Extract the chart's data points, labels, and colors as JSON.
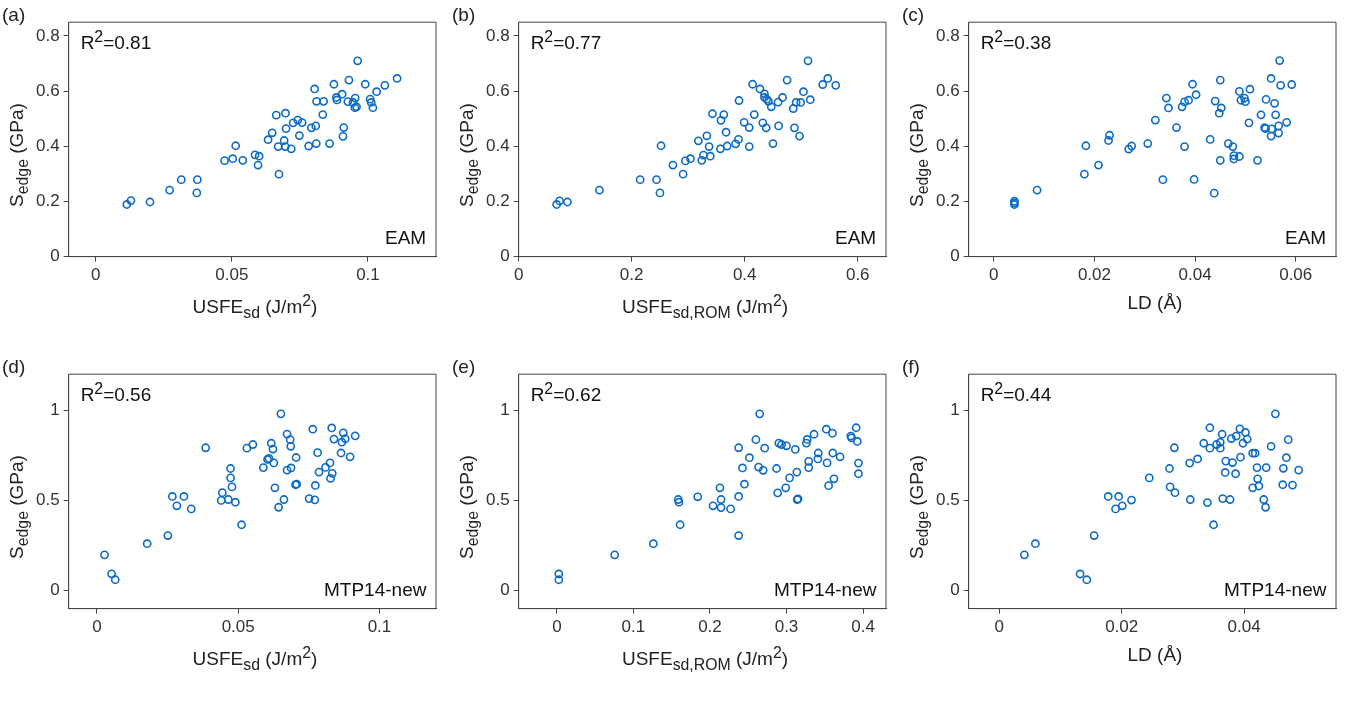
{
  "chart_data": [
    {
      "type": "scatter",
      "title": "(a)",
      "xlabel": "USFE$_{sd}$ (J/m$^{2}$)",
      "ylabel": "S$_{edge}$ (GPa)",
      "annotations": [
        "R$^{2}$=0.81",
        "EAM"
      ],
      "color": "#0b6bc4",
      "marker": "circle",
      "xlim": [
        -0.01,
        0.125
      ],
      "xticks": [
        0,
        0.05,
        0.1
      ],
      "ylim": [
        0,
        0.85
      ],
      "yticks": [
        0,
        0.2,
        0.4,
        0.6,
        0.8
      ],
      "x": [
        0.0114,
        0.0129,
        0.0199,
        0.0271,
        0.0314,
        0.0373,
        0.0371,
        0.0473,
        0.0503,
        0.0514,
        0.054,
        0.0585,
        0.06,
        0.0596,
        0.0633,
        0.0648,
        0.0673,
        0.0663,
        0.0697,
        0.067,
        0.0692,
        0.0696,
        0.0718,
        0.0699,
        0.0725,
        0.0742,
        0.0758,
        0.0748,
        0.0782,
        0.0792,
        0.0808,
        0.081,
        0.0804,
        0.0811,
        0.0837,
        0.0834,
        0.0859,
        0.0875,
        0.0884,
        0.0886,
        0.0905,
        0.0911,
        0.0908,
        0.0926,
        0.093,
        0.0945,
        0.0953,
        0.0952,
        0.0958,
        0.0962,
        0.099,
        0.1008,
        0.1012,
        0.1018,
        0.1032,
        0.1062,
        0.1107
      ],
      "values": [
        0.189,
        0.203,
        0.198,
        0.241,
        0.279,
        0.279,
        0.231,
        0.348,
        0.355,
        0.402,
        0.349,
        0.369,
        0.364,
        0.332,
        0.424,
        0.449,
        0.299,
        0.513,
        0.52,
        0.399,
        0.421,
        0.399,
        0.391,
        0.464,
        0.485,
        0.495,
        0.486,
        0.439,
        0.401,
        0.467,
        0.474,
        0.41,
        0.608,
        0.563,
        0.563,
        0.515,
        0.41,
        0.625,
        0.577,
        0.568,
        0.589,
        0.468,
        0.436,
        0.562,
        0.64,
        0.559,
        0.575,
        0.54,
        0.543,
        0.71,
        0.625,
        0.571,
        0.559,
        0.54,
        0.598,
        0.621,
        0.646
      ]
    },
    {
      "type": "scatter",
      "title": "(b)",
      "xlabel": "USFE$_{sd,ROM}$ (J/m$^{2}$)",
      "ylabel": "S$_{edge}$ (GPa)",
      "annotations": [
        "R$^{2}$=0.77",
        "EAM"
      ],
      "color": "#0b6bc4",
      "marker": "circle",
      "xlim": [
        0,
        0.65
      ],
      "xticks": [
        0,
        0.2,
        0.4,
        0.6
      ],
      "ylim": [
        0,
        0.85
      ],
      "yticks": [
        0,
        0.2,
        0.4,
        0.6,
        0.8
      ],
      "x": [
        0.0673,
        0.0725,
        0.0863,
        0.143,
        0.215,
        0.244,
        0.25,
        0.252,
        0.273,
        0.291,
        0.295,
        0.304,
        0.318,
        0.324,
        0.327,
        0.333,
        0.337,
        0.339,
        0.343,
        0.357,
        0.358,
        0.363,
        0.367,
        0.369,
        0.384,
        0.389,
        0.39,
        0.399,
        0.408,
        0.408,
        0.414,
        0.417,
        0.427,
        0.432,
        0.435,
        0.435,
        0.438,
        0.439,
        0.442,
        0.447,
        0.45,
        0.46,
        0.459,
        0.467,
        0.475,
        0.486,
        0.488,
        0.491,
        0.499,
        0.497,
        0.504,
        0.516,
        0.512,
        0.538,
        0.547,
        0.561
      ],
      "values": [
        0.189,
        0.202,
        0.198,
        0.241,
        0.279,
        0.279,
        0.231,
        0.402,
        0.332,
        0.299,
        0.347,
        0.355,
        0.42,
        0.349,
        0.368,
        0.438,
        0.399,
        0.364,
        0.518,
        0.391,
        0.494,
        0.515,
        0.451,
        0.401,
        0.409,
        0.425,
        0.566,
        0.487,
        0.468,
        0.399,
        0.625,
        0.515,
        0.608,
        0.485,
        0.59,
        0.577,
        0.467,
        0.571,
        0.563,
        0.543,
        0.41,
        0.474,
        0.56,
        0.577,
        0.64,
        0.537,
        0.467,
        0.559,
        0.559,
        0.437,
        0.598,
        0.569,
        0.71,
        0.624,
        0.646,
        0.621
      ]
    },
    {
      "type": "scatter",
      "title": "(c)",
      "xlabel": "LD (Å)",
      "ylabel": "S$_{edge}$ (GPa)",
      "annotations": [
        "R$^{2}$=0.38",
        "EAM"
      ],
      "color": "#0b6bc4",
      "marker": "circle",
      "xlim": [
        -0.005,
        0.068
      ],
      "xticks": [
        0,
        0.02,
        0.04,
        0.06
      ],
      "ylim": [
        0,
        0.85
      ],
      "yticks": [
        0,
        0.2,
        0.4,
        0.6,
        0.8
      ],
      "x": [
        0.0041,
        0.0041,
        0.0041,
        0.0086,
        0.018,
        0.0183,
        0.0208,
        0.0228,
        0.023,
        0.0268,
        0.0274,
        0.0306,
        0.0321,
        0.0336,
        0.0343,
        0.0347,
        0.0363,
        0.0374,
        0.0379,
        0.0379,
        0.0387,
        0.0395,
        0.0398,
        0.0402,
        0.043,
        0.0438,
        0.044,
        0.0448,
        0.045,
        0.045,
        0.0452,
        0.0466,
        0.0475,
        0.0477,
        0.0477,
        0.0488,
        0.0488,
        0.0491,
        0.05,
        0.0498,
        0.0507,
        0.0509,
        0.0524,
        0.0531,
        0.0538,
        0.054,
        0.0541,
        0.0551,
        0.0551,
        0.0552,
        0.0558,
        0.056,
        0.0566,
        0.0566,
        0.057,
        0.0568,
        0.0582,
        0.0592
      ],
      "values": [
        0.201,
        0.189,
        0.195,
        0.241,
        0.299,
        0.402,
        0.332,
        0.421,
        0.44,
        0.39,
        0.401,
        0.41,
        0.495,
        0.279,
        0.575,
        0.539,
        0.468,
        0.543,
        0.561,
        0.399,
        0.567,
        0.625,
        0.28,
        0.587,
        0.425,
        0.23,
        0.564,
        0.52,
        0.64,
        0.349,
        0.539,
        0.41,
        0.399,
        0.366,
        0.354,
        0.599,
        0.363,
        0.567,
        0.562,
        0.575,
        0.485,
        0.607,
        0.349,
        0.514,
        0.468,
        0.464,
        0.57,
        0.646,
        0.437,
        0.463,
        0.556,
        0.514,
        0.448,
        0.474,
        0.621,
        0.711,
        0.487,
        0.624
      ]
    },
    {
      "type": "scatter",
      "title": "(d)",
      "xlabel": "USFE$_{sd}$ (J/m$^{2}$)",
      "ylabel": "S$_{edge}$ (GPa)",
      "annotations": [
        "R$^{2}$=0.56",
        "MTP14-new"
      ],
      "color": "#0b6bc4",
      "marker": "circle",
      "xlim": [
        -0.01,
        0.12
      ],
      "xticks": [
        0,
        0.05,
        0.1
      ],
      "ylim": [
        -0.1,
        1.2
      ],
      "yticks": [
        0,
        0.5,
        1
      ],
      "x": [
        0.0027,
        0.0052,
        0.0065,
        0.0178,
        0.0251,
        0.0267,
        0.0283,
        0.0308,
        0.0334,
        0.0385,
        0.044,
        0.0444,
        0.0465,
        0.0473,
        0.0473,
        0.0478,
        0.049,
        0.0512,
        0.0531,
        0.0552,
        0.0589,
        0.0604,
        0.0609,
        0.0617,
        0.0623,
        0.0626,
        0.063,
        0.0643,
        0.0651,
        0.0662,
        0.0673,
        0.0673,
        0.0684,
        0.0686,
        0.0687,
        0.0705,
        0.0703,
        0.0707,
        0.0751,
        0.0764,
        0.0771,
        0.0773,
        0.0781,
        0.0786,
        0.0809,
        0.0825,
        0.0827,
        0.0831,
        0.0833,
        0.0839,
        0.0864,
        0.0867,
        0.0872,
        0.0879,
        0.0896,
        0.0914
      ],
      "values": [
        0.198,
        0.093,
        0.06,
        0.26,
        0.305,
        0.522,
        0.47,
        0.522,
        0.453,
        0.792,
        0.5,
        0.543,
        0.505,
        0.677,
        0.625,
        0.575,
        0.49,
        0.365,
        0.79,
        0.81,
        0.682,
        0.727,
        0.733,
        0.817,
        0.785,
        0.708,
        0.57,
        0.462,
        0.98,
        0.505,
        0.868,
        0.668,
        0.837,
        0.8,
        0.68,
        0.738,
        0.587,
        0.59,
        0.51,
        0.895,
        0.503,
        0.583,
        0.765,
        0.657,
        0.683,
        0.708,
        0.622,
        0.902,
        0.65,
        0.84,
        0.763,
        0.823,
        0.875,
        0.842,
        0.742,
        0.858
      ]
    },
    {
      "type": "scatter",
      "title": "(e)",
      "xlabel": "USFE$_{sd,ROM}$ (J/m$^{2}$)",
      "ylabel": "S$_{edge}$ (GPa)",
      "annotations": [
        "R$^{2}$=0.62",
        "MTP14-new"
      ],
      "color": "#0b6bc4",
      "marker": "circle",
      "xlim": [
        -0.05,
        0.43
      ],
      "xticks": [
        0,
        0.1,
        0.2,
        0.3,
        0.4
      ],
      "ylim": [
        -0.1,
        1.2
      ],
      "yticks": [
        0,
        0.5,
        1
      ],
      "x": [
        0.0025,
        0.0025,
        0.0755,
        0.126,
        0.1585,
        0.1595,
        0.161,
        0.184,
        0.204,
        0.213,
        0.2145,
        0.2145,
        0.227,
        0.2375,
        0.2375,
        0.2375,
        0.2425,
        0.245,
        0.2515,
        0.26,
        0.2635,
        0.265,
        0.2695,
        0.2715,
        0.287,
        0.2885,
        0.29,
        0.2935,
        0.299,
        0.3,
        0.304,
        0.3115,
        0.3135,
        0.314,
        0.315,
        0.326,
        0.327,
        0.329,
        0.329,
        0.336,
        0.341,
        0.3415,
        0.352,
        0.353,
        0.355,
        0.36,
        0.362,
        0.3605,
        0.37,
        0.384,
        0.385,
        0.391,
        0.3925,
        0.394,
        0.394
      ],
      "values": [
        0.092,
        0.06,
        0.198,
        0.26,
        0.505,
        0.49,
        0.365,
        0.52,
        0.47,
        0.57,
        0.505,
        0.46,
        0.453,
        0.792,
        0.522,
        0.305,
        0.68,
        0.59,
        0.737,
        0.837,
        0.685,
        0.98,
        0.667,
        0.79,
        0.677,
        0.542,
        0.818,
        0.81,
        0.57,
        0.803,
        0.625,
        0.783,
        0.657,
        0.505,
        0.508,
        0.818,
        0.838,
        0.682,
        0.717,
        0.867,
        0.73,
        0.763,
        0.895,
        0.708,
        0.582,
        0.873,
        0.62,
        0.763,
        0.742,
        0.857,
        0.847,
        0.903,
        0.827,
        0.707,
        0.648
      ]
    },
    {
      "type": "scatter",
      "title": "(f)",
      "xlabel": "LD (Å)",
      "ylabel": "S$_{edge}$ (GPa)",
      "annotations": [
        "R$^{2}$=0.44",
        "MTP14-new"
      ],
      "color": "#0b6bc4",
      "marker": "circle",
      "xlim": [
        -0.005,
        0.055
      ],
      "xticks": [
        0,
        0.02,
        0.04
      ],
      "ylim": [
        -0.1,
        1.2
      ],
      "yticks": [
        0,
        0.5,
        1
      ],
      "x": [
        0.0041,
        0.0059,
        0.0132,
        0.0143,
        0.0155,
        0.0178,
        0.019,
        0.0195,
        0.0201,
        0.0216,
        0.0245,
        0.0278,
        0.0279,
        0.0287,
        0.0286,
        0.0311,
        0.0312,
        0.0324,
        0.0334,
        0.034,
        0.0344,
        0.0344,
        0.035,
        0.0355,
        0.0361,
        0.0361,
        0.0364,
        0.0365,
        0.0369,
        0.037,
        0.0377,
        0.0379,
        0.0381,
        0.0386,
        0.0387,
        0.0393,
        0.0394,
        0.0398,
        0.0402,
        0.0405,
        0.0414,
        0.0414,
        0.0418,
        0.0421,
        0.0422,
        0.0424,
        0.0432,
        0.0435,
        0.0436,
        0.0444,
        0.0451,
        0.0463,
        0.0464,
        0.0469,
        0.0472,
        0.0479,
        0.0489
      ],
      "values": [
        0.198,
        0.26,
        0.092,
        0.06,
        0.305,
        0.522,
        0.453,
        0.522,
        0.47,
        0.502,
        0.625,
        0.677,
        0.575,
        0.543,
        0.792,
        0.707,
        0.505,
        0.73,
        0.817,
        0.488,
        0.903,
        0.79,
        0.365,
        0.81,
        0.79,
        0.822,
        0.867,
        0.51,
        0.655,
        0.718,
        0.505,
        0.843,
        0.71,
        0.648,
        0.857,
        0.897,
        0.74,
        0.817,
        0.877,
        0.84,
        0.57,
        0.762,
        0.762,
        0.682,
        0.62,
        0.58,
        0.505,
        0.462,
        0.682,
        0.8,
        0.98,
        0.587,
        0.678,
        0.737,
        0.837,
        0.585,
        0.668
      ]
    }
  ]
}
